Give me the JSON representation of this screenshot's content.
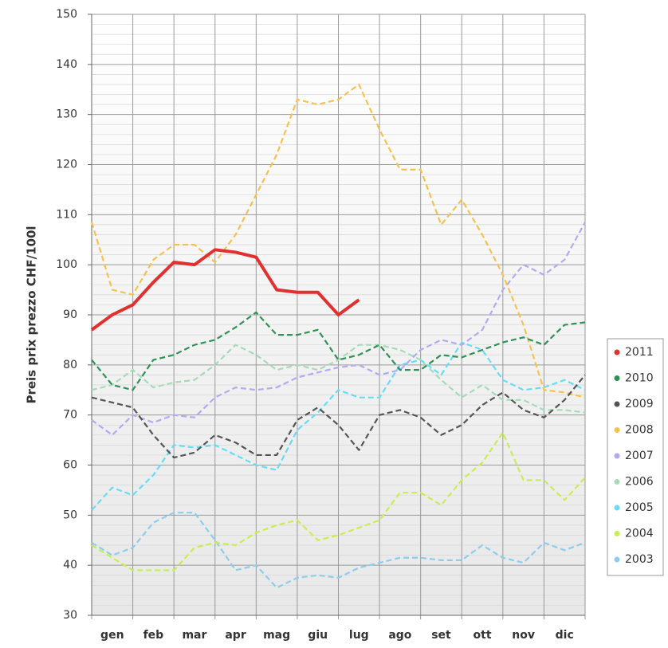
{
  "chart_data": {
    "type": "line",
    "y_label": "Preis prix prezzo CHF/100l",
    "x": [
      0,
      0.5,
      1,
      1.5,
      2,
      2.5,
      3,
      3.5,
      4,
      4.5,
      5,
      5.5,
      6,
      6.5,
      7,
      7.5,
      8,
      8.5,
      9,
      9.5,
      10,
      10.5,
      11,
      11.5,
      12
    ],
    "xlim": [
      0,
      12
    ],
    "xticks": [
      {
        "value": 0.5,
        "label": "gen"
      },
      {
        "value": 1.5,
        "label": "feb"
      },
      {
        "value": 2.5,
        "label": "mar"
      },
      {
        "value": 3.5,
        "label": "apr"
      },
      {
        "value": 4.5,
        "label": "mag"
      },
      {
        "value": 5.5,
        "label": "giu"
      },
      {
        "value": 6.5,
        "label": "lug"
      },
      {
        "value": 7.5,
        "label": "ago"
      },
      {
        "value": 8.5,
        "label": "set"
      },
      {
        "value": 9.5,
        "label": "ott"
      },
      {
        "value": 10.5,
        "label": "nov"
      },
      {
        "value": 11.5,
        "label": "dic"
      }
    ],
    "ylim": [
      30,
      150
    ],
    "yticks": [
      30,
      40,
      50,
      60,
      70,
      80,
      90,
      100,
      110,
      120,
      130,
      140,
      150
    ],
    "grid": true,
    "legend": "right",
    "series": [
      {
        "name": "2011",
        "color": "#e03030",
        "style": "solid",
        "values": [
          87,
          90,
          92,
          96.5,
          100.5,
          100,
          103,
          102.5,
          101.5,
          95,
          94.5,
          94.5,
          90,
          93,
          null,
          null,
          null,
          null,
          null,
          null,
          null,
          null,
          null,
          null,
          null
        ]
      },
      {
        "name": "2010",
        "color": "#2e9155",
        "style": "dashed",
        "values": [
          81,
          76,
          75,
          81,
          82,
          84,
          85,
          87.5,
          90.5,
          86,
          86,
          87,
          81,
          82,
          84,
          79,
          79,
          82,
          81.5,
          83,
          84.5,
          85.5,
          84,
          88,
          88.5
        ]
      },
      {
        "name": "2009",
        "color": "#555555",
        "style": "dashed",
        "values": [
          73.5,
          72.5,
          71.5,
          66,
          61.5,
          62.5,
          66,
          64.5,
          62,
          62,
          69,
          71.5,
          68,
          63,
          70,
          71,
          69.5,
          66,
          68,
          72,
          74.5,
          71,
          69.5,
          73,
          78
        ]
      },
      {
        "name": "2008",
        "color": "#f5c250",
        "style": "dashed",
        "values": [
          108.5,
          95,
          94,
          101,
          104,
          104,
          100.5,
          106,
          114,
          122,
          133,
          132,
          133,
          136,
          127,
          119,
          119,
          108,
          113,
          106,
          98,
          88,
          75,
          74.5,
          73.5
        ]
      },
      {
        "name": "2007",
        "color": "#b3aaf2",
        "style": "dashed",
        "values": [
          69,
          66,
          70,
          68.5,
          70,
          69.5,
          73.5,
          75.5,
          75,
          75.5,
          77.5,
          78.5,
          79.5,
          80,
          78,
          79,
          83,
          85,
          84,
          87,
          95,
          100,
          98,
          101,
          108.5
        ]
      },
      {
        "name": "2006",
        "color": "#a6dbb8",
        "style": "dashed",
        "values": [
          75,
          76,
          79,
          75.5,
          76.5,
          77,
          80,
          84,
          82,
          79,
          80,
          79,
          81,
          84,
          84,
          83,
          81,
          77,
          73.5,
          76,
          73,
          73,
          71,
          71,
          70.5
        ]
      },
      {
        "name": "2005",
        "color": "#66dcf5",
        "style": "dashed",
        "values": [
          51,
          55.5,
          54,
          58,
          64,
          63.5,
          64,
          62,
          60,
          59,
          67,
          70.5,
          75,
          73.5,
          73.5,
          80,
          81,
          78,
          84.5,
          83,
          77,
          75,
          75.5,
          77,
          75
        ]
      },
      {
        "name": "2004",
        "color": "#c8ee50",
        "style": "dashed",
        "values": [
          44,
          41.5,
          39,
          39,
          39,
          43.5,
          44.5,
          44,
          46.5,
          48,
          49,
          45,
          46,
          47.5,
          49,
          54.5,
          54.5,
          52,
          57,
          60.5,
          66.5,
          57,
          57,
          53,
          57.5
        ]
      },
      {
        "name": "2003",
        "color": "#8ccdee",
        "style": "dashed",
        "values": [
          44.5,
          42,
          43.5,
          48.5,
          50.5,
          50.5,
          45,
          39,
          40,
          35.5,
          37.5,
          38,
          37.5,
          39.5,
          40.5,
          41.5,
          41.5,
          41,
          41,
          44,
          41.5,
          40.5,
          44.5,
          43,
          44.5
        ]
      }
    ]
  }
}
